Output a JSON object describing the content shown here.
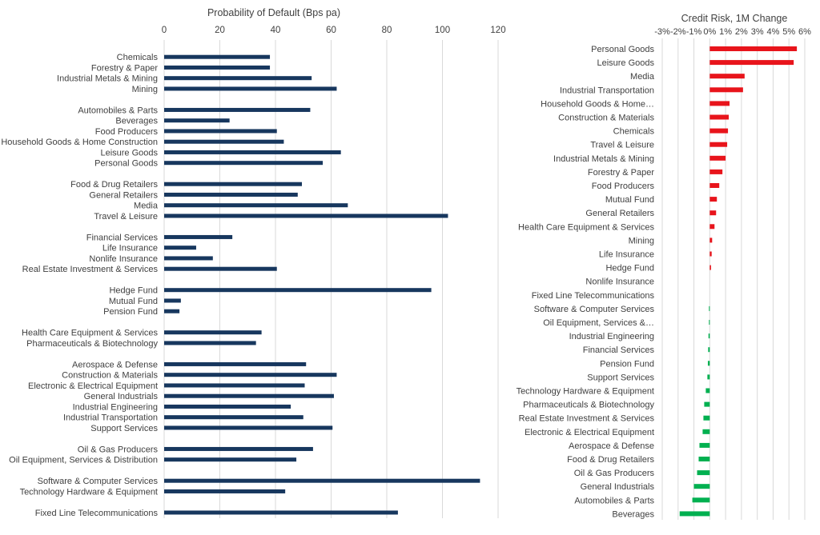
{
  "chart_data": [
    {
      "type": "bar",
      "orientation": "horizontal",
      "title": "Probability of Default (Bps pa)",
      "xlim": [
        0,
        120
      ],
      "xticks": [
        0,
        20,
        40,
        60,
        80,
        100,
        120
      ],
      "axis_position": "top",
      "grid": true,
      "bar_color": "#17375e",
      "groups": [
        {
          "categories": [
            "Chemicals",
            "Forestry & Paper",
            "Industrial Metals & Mining",
            "Mining"
          ],
          "values": [
            38,
            38,
            53,
            62
          ]
        },
        {
          "categories": [
            "Automobiles & Parts",
            "Beverages",
            "Food Producers",
            "Household Goods & Home Construction",
            "Leisure Goods",
            "Personal Goods"
          ],
          "values": [
            52.5,
            23.5,
            40.5,
            43,
            63.5,
            57
          ]
        },
        {
          "categories": [
            "Food & Drug Retailers",
            "General Retailers",
            "Media",
            "Travel & Leisure"
          ],
          "values": [
            49.5,
            48,
            66,
            102
          ]
        },
        {
          "categories": [
            "Financial Services",
            "Life Insurance",
            "Nonlife Insurance",
            "Real Estate Investment & Services"
          ],
          "values": [
            24.5,
            11.5,
            17.5,
            40.5
          ]
        },
        {
          "categories": [
            "Hedge Fund",
            "Mutual Fund",
            "Pension Fund"
          ],
          "values": [
            96,
            6,
            5.5
          ]
        },
        {
          "categories": [
            "Health Care Equipment & Services",
            "Pharmaceuticals & Biotechnology"
          ],
          "values": [
            35,
            33
          ]
        },
        {
          "categories": [
            "Aerospace & Defense",
            "Construction & Materials",
            "Electronic & Electrical Equipment",
            "General Industrials",
            "Industrial Engineering",
            "Industrial Transportation",
            "Support Services"
          ],
          "values": [
            51,
            62,
            50.5,
            61,
            45.5,
            50,
            60.5
          ]
        },
        {
          "categories": [
            "Oil & Gas Producers",
            "Oil Equipment, Services & Distribution"
          ],
          "values": [
            53.5,
            47.5
          ]
        },
        {
          "categories": [
            "Software & Computer Services",
            "Technology Hardware & Equipment"
          ],
          "values": [
            113.5,
            43.5
          ]
        },
        {
          "categories": [
            "Fixed Line Telecommunications"
          ],
          "values": [
            84
          ]
        }
      ]
    },
    {
      "type": "bar",
      "orientation": "horizontal",
      "title": "Credit Risk, 1M Change",
      "xlim": [
        -3,
        6
      ],
      "xticks": [
        -3,
        -2,
        -1,
        0,
        1,
        2,
        3,
        4,
        5,
        6
      ],
      "xtick_labels": [
        "-3%",
        "-2%",
        "-1%",
        "0%",
        "1%",
        "2%",
        "3%",
        "4%",
        "5%",
        "6%"
      ],
      "axis_position": "top",
      "grid": true,
      "positive_color": "#e8141b",
      "negative_color": "#00b050",
      "categories": [
        "Personal Goods",
        "Leisure Goods",
        "Media",
        "Industrial Transportation",
        "Household Goods & Home…",
        "Construction & Materials",
        "Chemicals",
        "Travel & Leisure",
        "Industrial Metals & Mining",
        "Forestry & Paper",
        "Food Producers",
        "Mutual Fund",
        "General Retailers",
        "Health Care Equipment & Services",
        "Mining",
        "Life Insurance",
        "Hedge Fund",
        "Nonlife Insurance",
        "Fixed Line Telecommunications",
        "Software & Computer Services",
        "Oil Equipment, Services &…",
        "Industrial Engineering",
        "Financial Services",
        "Pension Fund",
        "Support Services",
        "Technology Hardware & Equipment",
        "Pharmaceuticals & Biotechnology",
        "Real Estate Investment & Services",
        "Electronic & Electrical Equipment",
        "Aerospace & Defense",
        "Food & Drug Retailers",
        "Oil & Gas Producers",
        "General Industrials",
        "Automobiles & Parts",
        "Beverages"
      ],
      "values": [
        5.5,
        5.3,
        2.2,
        2.1,
        1.25,
        1.2,
        1.15,
        1.1,
        1.0,
        0.8,
        0.6,
        0.45,
        0.4,
        0.3,
        0.15,
        0.12,
        0.08,
        0,
        0,
        -0.05,
        -0.05,
        -0.08,
        -0.1,
        -0.12,
        -0.15,
        -0.25,
        -0.35,
        -0.4,
        -0.45,
        -0.65,
        -0.7,
        -0.8,
        -1.0,
        -1.1,
        -1.9
      ]
    }
  ]
}
